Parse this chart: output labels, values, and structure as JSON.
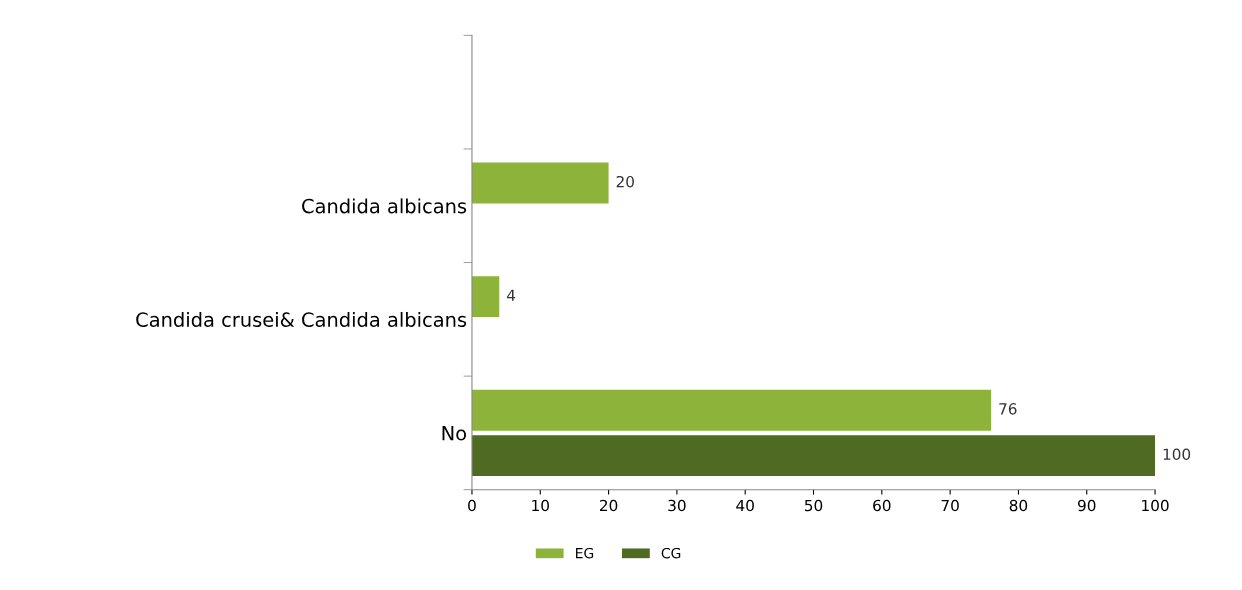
{
  "chart_data": {
    "type": "bar",
    "orientation": "horizontal",
    "categories": [
      null,
      "Candida albicans",
      "Candida crusei& Candida albicans",
      "No"
    ],
    "series": [
      {
        "name": "EG",
        "color": "#8db33a",
        "values": [
          null,
          20,
          4,
          76
        ]
      },
      {
        "name": "CG",
        "color": "#4f6b22",
        "values": [
          null,
          null,
          null,
          100
        ]
      }
    ],
    "xlim": [
      0,
      100
    ],
    "xticks": [
      0,
      10,
      20,
      30,
      40,
      50,
      60,
      70,
      80,
      90,
      100
    ],
    "data_labels": true,
    "legend": "bottom",
    "grid": false
  }
}
